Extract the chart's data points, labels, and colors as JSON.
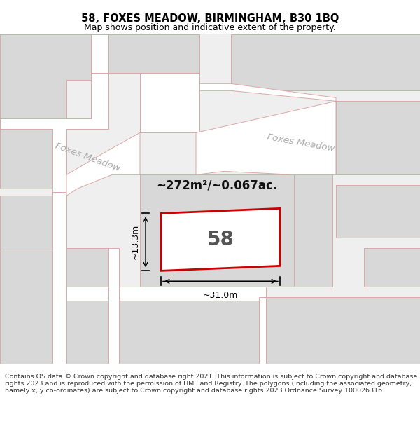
{
  "title": "58, FOXES MEADOW, BIRMINGHAM, B30 1BQ",
  "subtitle": "Map shows position and indicative extent of the property.",
  "footer": "Contains OS data © Crown copyright and database right 2021. This information is subject to Crown copyright and database rights 2023 and is reproduced with the permission of HM Land Registry. The polygons (including the associated geometry, namely x, y co-ordinates) are subject to Crown copyright and database rights 2023 Ordnance Survey 100026316.",
  "area_label": "~272m²/~0.067ac.",
  "house_number": "58",
  "dim_width": "~31.0m",
  "dim_height": "~13.3m",
  "bg_color": "#efefef",
  "road_color": "#ffffff",
  "road_outline_color": "#dba8a8",
  "block_fill": "#d8d8d8",
  "block_outline": "#dba8a8",
  "plot_outline_color": "#cc0000",
  "plot_fill": "#ffffff",
  "street_label_color": "#aaaaaa",
  "title_color": "#000000",
  "dim_color": "#000000",
  "footer_color": "#333333",
  "footer_fontsize": 6.8,
  "title_fontsize": 10.5,
  "subtitle_fontsize": 9.0
}
